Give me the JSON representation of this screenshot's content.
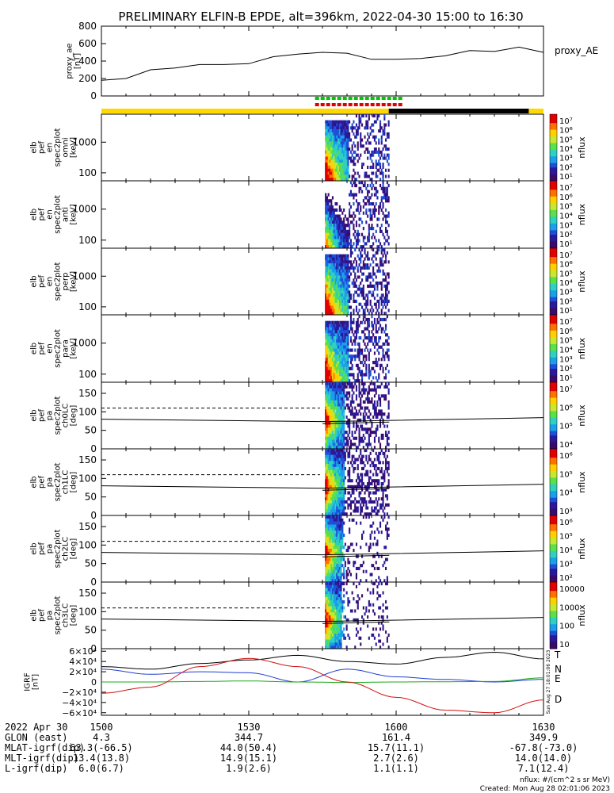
{
  "title": "PRELIMINARY ELFIN-B EPDE, alt=396km, 2022-04-30 15:00 to 16:30",
  "colors": {
    "sun_bar": "#ffd800",
    "shadow_bar": "#000000",
    "red_marks": "#e00000",
    "green_marks": "#00c800",
    "grf_T": "#000000",
    "grf_N": "#1f3fd0",
    "grf_E": "#1aa81a",
    "grf_D": "#d01010"
  },
  "panels": {
    "ae": {
      "ylabel_lines": [
        "proxy_ae",
        "[nT]"
      ],
      "legend": "proxy_AE",
      "ticks": [
        "800",
        "600",
        "400",
        "200",
        "0"
      ]
    },
    "omni": {
      "ylabel_lines": [
        "elb",
        "pef",
        "en",
        "spec2plot",
        "omni",
        "[keV]"
      ],
      "ticks": [
        "1000",
        "100"
      ]
    },
    "anti": {
      "ylabel_lines": [
        "elb",
        "pef",
        "en",
        "spec2plot",
        "anti",
        "[keV]"
      ],
      "ticks": [
        "1000",
        "100"
      ]
    },
    "perp": {
      "ylabel_lines": [
        "elb",
        "pef",
        "en",
        "spec2plot",
        "perp",
        "[keV]"
      ],
      "ticks": [
        "1000",
        "100"
      ]
    },
    "para": {
      "ylabel_lines": [
        "elb",
        "pef",
        "en",
        "spec2plot",
        "para",
        "[keV]"
      ],
      "ticks": [
        "1000",
        "100"
      ]
    },
    "ch0": {
      "ylabel_lines": [
        "elb",
        "pef",
        "pa",
        "spec2plot",
        "ch0LC",
        "[deg]"
      ],
      "ticks": [
        "150",
        "100",
        "50",
        "0"
      ]
    },
    "ch1": {
      "ylabel_lines": [
        "elb",
        "pef",
        "pa",
        "spec2plot",
        "ch1LC",
        "[deg]"
      ],
      "ticks": [
        "150",
        "100",
        "50",
        "0"
      ]
    },
    "ch2": {
      "ylabel_lines": [
        "elb",
        "pef",
        "pa",
        "spec2plot",
        "ch2LC",
        "[deg]"
      ],
      "ticks": [
        "150",
        "100",
        "50",
        "0"
      ]
    },
    "ch3": {
      "ylabel_lines": [
        "elb",
        "pef",
        "pa",
        "spec2plot",
        "ch3LC",
        "[deg]"
      ],
      "ticks": [
        "150",
        "100",
        "50",
        "0"
      ]
    },
    "grf": {
      "ylabel_lines": [
        "IGRF",
        "[nT]"
      ],
      "ticks": [
        "6×10⁴",
        "4×10⁴",
        "2×10⁴",
        "0",
        "−2×10⁴",
        "−4×10⁴",
        "−6×10⁴"
      ],
      "legend": [
        "T",
        "N",
        "E",
        "D"
      ]
    }
  },
  "colorbars": {
    "unit": "nflux",
    "cb1": [
      "10⁷",
      "10⁶",
      "10⁵",
      "10⁴",
      "10³",
      "10²",
      "10¹"
    ],
    "cb2": [
      "10⁷",
      "10⁶",
      "10⁵",
      "10⁴",
      "10³",
      "10²",
      "10¹"
    ],
    "cb3": [
      "10⁷",
      "10⁶",
      "10⁵",
      "10⁴",
      "10³",
      "10²",
      "10¹"
    ],
    "cb4": [
      "10⁷",
      "10⁶",
      "10⁵",
      "10⁴",
      "10³",
      "10²",
      "10¹"
    ],
    "cb5": [
      "10⁷",
      "10⁶",
      "10⁵",
      "10⁴"
    ],
    "cb6": [
      "10⁶",
      "10⁵",
      "10⁴",
      "10³"
    ],
    "cb7": [
      "10⁶",
      "10⁵",
      "10⁴",
      "10³",
      "10²"
    ],
    "cb8": [
      "10000",
      "1000",
      "100",
      "10"
    ]
  },
  "stamp": "Sun Aug 27 18:01:06 2023",
  "footer": {
    "rows": [
      {
        "label": "2022 Apr 30",
        "v": [
          "1500",
          "1530",
          "1600",
          "1630"
        ]
      },
      {
        "label": "GLON (east)",
        "v": [
          "4.3",
          "344.7",
          "161.4",
          "349.9"
        ]
      },
      {
        "label": "MLAT-igrf(dip)",
        "v": [
          "63.3(-66.5)",
          "44.0(50.4)",
          "15.7(11.1)",
          "-67.8(-73.0)"
        ]
      },
      {
        "label": "MLT-igrf(dip)",
        "v": [
          "13.4(13.8)",
          "14.9(15.1)",
          "2.7(2.6)",
          "14.0(14.0)"
        ]
      },
      {
        "label": "L-igrf(dip)",
        "v": [
          "6.0(6.7)",
          "1.9(2.6)",
          "1.1(1.1)",
          "7.1(12.4)"
        ]
      }
    ],
    "units_note": "nflux: #/(cm^2 s sr MeV)",
    "created": "Created: Mon Aug 28 02:01:06 2023"
  },
  "chart_data": {
    "type": "line",
    "title": "PRELIMINARY ELFIN-B EPDE, alt=396km, 2022-04-30 15:00 to 16:30",
    "x_ticks": [
      "1500",
      "1530",
      "1600",
      "1630"
    ],
    "proxy_ae": {
      "ylabel": "proxy_ae [nT]",
      "ylim": [
        0,
        800
      ],
      "x": [
        0,
        5,
        10,
        15,
        20,
        25,
        30,
        35,
        40,
        45,
        50,
        55,
        60,
        65,
        70,
        75,
        80,
        85,
        90
      ],
      "values": [
        180,
        200,
        300,
        320,
        360,
        360,
        370,
        450,
        480,
        500,
        490,
        420,
        420,
        430,
        460,
        520,
        510,
        560,
        500
      ],
      "series_name": "proxy_AE"
    },
    "igrf": {
      "ylabel": "IGRF [nT]",
      "ylim": [
        -65000,
        65000
      ],
      "x": [
        0,
        10,
        20,
        30,
        40,
        50,
        60,
        70,
        80,
        90
      ],
      "series": [
        {
          "name": "T",
          "values": [
            30000,
            25000,
            36000,
            43000,
            52000,
            40000,
            35000,
            48000,
            58000,
            45000
          ]
        },
        {
          "name": "N",
          "values": [
            25000,
            15000,
            20000,
            18000,
            0,
            25000,
            10000,
            5000,
            0,
            5000
          ]
        },
        {
          "name": "E",
          "values": [
            0,
            0,
            1000,
            2000,
            0,
            -1000,
            0,
            500,
            1000,
            8000
          ]
        },
        {
          "name": "D",
          "values": [
            -22000,
            -10000,
            30000,
            46000,
            30000,
            0,
            -30000,
            -55000,
            -60000,
            -35000
          ]
        }
      ]
    }
  }
}
